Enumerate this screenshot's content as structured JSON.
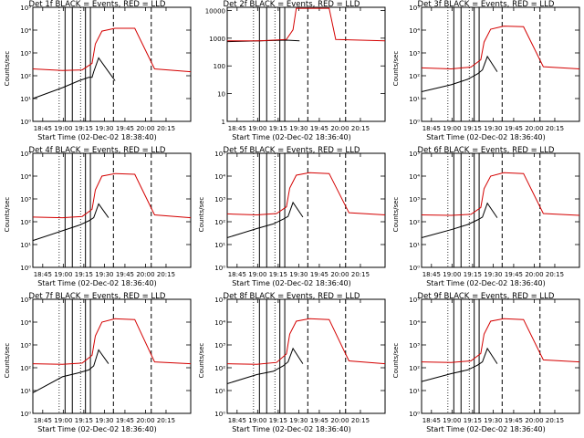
{
  "chart_data": [
    {
      "type": "line",
      "title": "Det 1f BLACK = Events, RED = LLD",
      "xlabel": "Start Time (02-Dec-02 18:38:40)",
      "ylabel": "Counts/sec",
      "yscale": "log",
      "ylim": [
        1,
        100000
      ],
      "ytick_labels": [
        "10⁰",
        "10¹",
        "10²",
        "10³",
        "10⁴",
        "10⁵"
      ],
      "xtick_labels": [
        "18:45",
        "19:00",
        "19:15",
        "19:30",
        "19:45",
        "20:00",
        "20:15"
      ],
      "series": [
        {
          "name": "Events",
          "color": "#000000",
          "x": [
            -0.05,
            0.04,
            0.09,
            0.12,
            0.13,
            0.135,
            0.15,
            0.18,
            0.2
          ],
          "y": [
            10,
            30,
            60,
            85,
            85,
            150,
            600,
            150,
            60
          ]
        },
        {
          "name": "LLD",
          "color": "#d40000",
          "x": [
            -0.05,
            0.04,
            0.1,
            0.13,
            0.14,
            0.16,
            0.2,
            0.26,
            0.32,
            0.43
          ],
          "y": [
            200,
            170,
            180,
            350,
            2500,
            9000,
            12000,
            12000,
            200,
            150
          ]
        }
      ]
    },
    {
      "type": "line",
      "title": "Det 2f BLACK = Events, RED = LLD",
      "xlabel": "Start Time (02-Dec-02 18:36:40)",
      "ylabel": "",
      "yscale": "log",
      "ylim": [
        1,
        13000
      ],
      "ytick_labels": [
        "1",
        "10",
        "100",
        "1000",
        "10000"
      ],
      "xtick_labels": [
        "18:45",
        "19:00",
        "19:15",
        "19:30",
        "19:45",
        "20:00",
        "20:15"
      ],
      "series": [
        {
          "name": "Events",
          "color": "#000000",
          "x": [
            -0.05,
            0.05,
            0.13,
            0.17
          ],
          "y": [
            750,
            800,
            850,
            800
          ]
        },
        {
          "name": "LLD",
          "color": "#d40000",
          "x": [
            -0.05,
            0.05,
            0.13,
            0.15,
            0.16,
            0.2,
            0.26,
            0.28,
            0.43
          ],
          "y": [
            800,
            800,
            900,
            2000,
            12000,
            12000,
            12000,
            900,
            800
          ]
        }
      ]
    },
    {
      "type": "line",
      "title": "Det 3f BLACK = Events, RED = LLD",
      "xlabel": "Start Time (02-Dec-02 18:36:40)",
      "ylabel": "Counts/sec",
      "yscale": "log",
      "ylim": [
        1,
        100000
      ],
      "ytick_labels": [
        "10⁰",
        "10¹",
        "10²",
        "10³",
        "10⁴",
        "10⁵"
      ],
      "xtick_labels": [
        "18:45",
        "19:00",
        "19:15",
        "19:30",
        "19:45",
        "20:00",
        "20:15"
      ],
      "series": [
        {
          "name": "Events",
          "color": "#000000",
          "x": [
            -0.05,
            0.04,
            0.09,
            0.12,
            0.135,
            0.15,
            0.18
          ],
          "y": [
            20,
            40,
            70,
            120,
            180,
            700,
            150
          ]
        },
        {
          "name": "LLD",
          "color": "#d40000",
          "x": [
            -0.05,
            0.04,
            0.1,
            0.13,
            0.14,
            0.16,
            0.2,
            0.26,
            0.32,
            0.43
          ],
          "y": [
            220,
            200,
            240,
            500,
            3000,
            11000,
            15000,
            14000,
            250,
            200
          ]
        }
      ]
    },
    {
      "type": "line",
      "title": "Det 4f BLACK = Events, RED = LLD",
      "xlabel": "Start Time (02-Dec-02 18:36:40)",
      "ylabel": "Counts/sec",
      "yscale": "log",
      "ylim": [
        1,
        100000
      ],
      "ytick_labels": [
        "10⁰",
        "10¹",
        "10²",
        "10³",
        "10⁴",
        "10⁵"
      ],
      "xtick_labels": [
        "18:45",
        "19:00",
        "19:15",
        "19:30",
        "19:45",
        "20:00",
        "20:15"
      ],
      "series": [
        {
          "name": "Events",
          "color": "#000000",
          "x": [
            -0.05,
            0.04,
            0.09,
            0.12,
            0.135,
            0.15,
            0.18
          ],
          "y": [
            15,
            40,
            70,
            110,
            150,
            600,
            150
          ]
        },
        {
          "name": "LLD",
          "color": "#d40000",
          "x": [
            -0.05,
            0.04,
            0.1,
            0.13,
            0.14,
            0.16,
            0.2,
            0.26,
            0.32,
            0.43
          ],
          "y": [
            160,
            150,
            170,
            350,
            2500,
            10000,
            13000,
            12000,
            200,
            150
          ]
        }
      ]
    },
    {
      "type": "line",
      "title": "Det 5f BLACK = Events, RED = LLD",
      "xlabel": "Start Time (02-Dec-02 18:36:40)",
      "ylabel": "Counts/sec",
      "yscale": "log",
      "ylim": [
        1,
        100000
      ],
      "ytick_labels": [
        "10⁰",
        "10¹",
        "10²",
        "10³",
        "10⁴",
        "10⁵"
      ],
      "xtick_labels": [
        "18:45",
        "19:00",
        "19:15",
        "19:30",
        "19:45",
        "20:00",
        "20:15"
      ],
      "series": [
        {
          "name": "Events",
          "color": "#000000",
          "x": [
            -0.05,
            0.04,
            0.09,
            0.12,
            0.135,
            0.15,
            0.18
          ],
          "y": [
            20,
            50,
            80,
            130,
            170,
            700,
            160
          ]
        },
        {
          "name": "LLD",
          "color": "#d40000",
          "x": [
            -0.05,
            0.04,
            0.1,
            0.13,
            0.14,
            0.16,
            0.2,
            0.26,
            0.32,
            0.43
          ],
          "y": [
            220,
            200,
            230,
            450,
            3000,
            11000,
            14000,
            13000,
            250,
            200
          ]
        }
      ]
    },
    {
      "type": "line",
      "title": "Det 6f BLACK = Events, RED = LLD",
      "xlabel": "Start Time (02-Dec-02 18:36:40)",
      "ylabel": "Counts/sec",
      "yscale": "log",
      "ylim": [
        1,
        100000
      ],
      "ytick_labels": [
        "10⁰",
        "10¹",
        "10²",
        "10³",
        "10⁴",
        "10⁵"
      ],
      "xtick_labels": [
        "18:45",
        "19:00",
        "19:15",
        "19:30",
        "19:45",
        "20:00",
        "20:15"
      ],
      "series": [
        {
          "name": "Events",
          "color": "#000000",
          "x": [
            -0.05,
            0.04,
            0.09,
            0.12,
            0.135,
            0.15,
            0.18
          ],
          "y": [
            20,
            45,
            75,
            120,
            160,
            650,
            150
          ]
        },
        {
          "name": "LLD",
          "color": "#d40000",
          "x": [
            -0.05,
            0.04,
            0.1,
            0.13,
            0.14,
            0.16,
            0.2,
            0.26,
            0.32,
            0.43
          ],
          "y": [
            200,
            190,
            210,
            420,
            2800,
            10000,
            14000,
            13000,
            230,
            190
          ]
        }
      ]
    },
    {
      "type": "line",
      "title": "Det 7f BLACK = Events, RED = LLD",
      "xlabel": "Start Time (02-Dec-02 18:36:40)",
      "ylabel": "Counts/sec",
      "yscale": "log",
      "ylim": [
        1,
        100000
      ],
      "ytick_labels": [
        "10⁰",
        "10¹",
        "10²",
        "10³",
        "10⁴",
        "10⁵"
      ],
      "xtick_labels": [
        "18:45",
        "19:00",
        "19:15",
        "19:30",
        "19:45",
        "20:00",
        "20:15"
      ],
      "series": [
        {
          "name": "Events",
          "color": "#000000",
          "x": [
            -0.05,
            0.04,
            0.09,
            0.12,
            0.135,
            0.15,
            0.18
          ],
          "y": [
            8,
            40,
            60,
            80,
            120,
            600,
            150
          ]
        },
        {
          "name": "LLD",
          "color": "#d40000",
          "x": [
            -0.05,
            0.04,
            0.1,
            0.13,
            0.14,
            0.16,
            0.2,
            0.26,
            0.32,
            0.43
          ],
          "y": [
            150,
            140,
            160,
            350,
            2500,
            10000,
            14000,
            13000,
            180,
            150
          ]
        }
      ]
    },
    {
      "type": "line",
      "title": "Det 8f BLACK = Events, RED = LLD",
      "xlabel": "Start Time (02-Dec-02 18:36:40)",
      "ylabel": "Counts/sec",
      "yscale": "log",
      "ylim": [
        1,
        100000
      ],
      "ytick_labels": [
        "10⁰",
        "10¹",
        "10²",
        "10³",
        "10⁴",
        "10⁵"
      ],
      "xtick_labels": [
        "18:45",
        "19:00",
        "19:15",
        "19:30",
        "19:45",
        "20:00",
        "20:15"
      ],
      "series": [
        {
          "name": "Events",
          "color": "#000000",
          "x": [
            -0.05,
            0.04,
            0.09,
            0.12,
            0.135,
            0.15,
            0.18
          ],
          "y": [
            20,
            50,
            70,
            120,
            180,
            700,
            150
          ]
        },
        {
          "name": "LLD",
          "color": "#d40000",
          "x": [
            -0.05,
            0.04,
            0.1,
            0.13,
            0.14,
            0.16,
            0.2,
            0.26,
            0.32,
            0.43
          ],
          "y": [
            150,
            140,
            170,
            400,
            3000,
            11000,
            14000,
            13000,
            200,
            150
          ]
        }
      ]
    },
    {
      "type": "line",
      "title": "Det 9f BLACK = Events, RED = LLD",
      "xlabel": "Start Time (02-Dec-02 18:36:40)",
      "ylabel": "Counts/sec",
      "yscale": "log",
      "ylim": [
        1,
        100000
      ],
      "ytick_labels": [
        "10⁰",
        "10¹",
        "10²",
        "10³",
        "10⁴",
        "10⁵"
      ],
      "xtick_labels": [
        "18:45",
        "19:00",
        "19:15",
        "19:30",
        "19:45",
        "20:00",
        "20:15"
      ],
      "series": [
        {
          "name": "Events",
          "color": "#000000",
          "x": [
            -0.05,
            0.04,
            0.09,
            0.12,
            0.135,
            0.15,
            0.18
          ],
          "y": [
            25,
            55,
            80,
            130,
            180,
            700,
            150
          ]
        },
        {
          "name": "LLD",
          "color": "#d40000",
          "x": [
            -0.05,
            0.04,
            0.1,
            0.13,
            0.14,
            0.16,
            0.2,
            0.26,
            0.32,
            0.43
          ],
          "y": [
            180,
            170,
            200,
            420,
            3000,
            11000,
            14000,
            13000,
            220,
            180
          ]
        }
      ]
    }
  ]
}
